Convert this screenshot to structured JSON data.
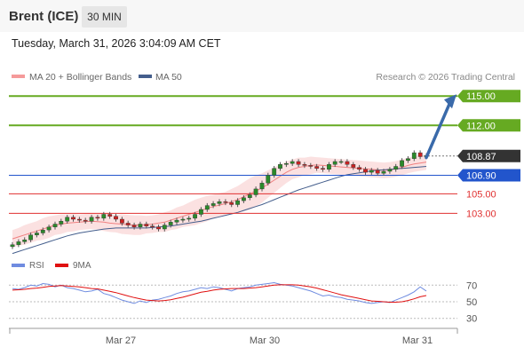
{
  "header": {
    "instrument": "Brent (ICE)",
    "timeframe": "30 MIN",
    "timestamp": "Tuesday, March 31, 2026 3:04:09 AM CET"
  },
  "legend": {
    "ma20_bb": "MA 20 + Bollinger Bands",
    "ma50": "MA 50",
    "credit": "Research © 2026 Trading Central"
  },
  "rsi_legend": {
    "rsi": "RSI",
    "ma9": "9MA"
  },
  "colors": {
    "green": "#66aa22",
    "blue": "#2255cc",
    "red": "#e03030",
    "dark_label": "#333333",
    "ma20_band": "#f8c8c8",
    "ma20_line": "#f08080",
    "ma50_line": "#445e8c",
    "arrow": "#3a6aaa",
    "rsi_line": "#6f8ce0",
    "rsi_ma": "#e01010",
    "candle_up": "#2a8a2a",
    "candle_down": "#cc2222"
  },
  "chart_data": {
    "type": "candlestick",
    "price_scale": {
      "visible_min": 98.5,
      "visible_max": 116.2
    },
    "x_ticks": [
      "Mar 27",
      "Mar 30",
      "Mar 31"
    ],
    "levels": [
      {
        "value": 115.0,
        "label": "115.00",
        "kind": "resistance"
      },
      {
        "value": 112.0,
        "label": "112.00",
        "kind": "resistance"
      },
      {
        "value": 108.87,
        "label": "108.87",
        "kind": "last"
      },
      {
        "value": 106.9,
        "label": "106.90",
        "kind": "pivot"
      },
      {
        "value": 105.0,
        "label": "105.00",
        "kind": "support"
      },
      {
        "value": 103.0,
        "label": "103.00",
        "kind": "support"
      }
    ],
    "arrow": {
      "from": 108.7,
      "to": 115.0
    },
    "close_series": [
      99.8,
      100.1,
      100.3,
      100.8,
      101.0,
      101.3,
      101.6,
      101.9,
      102.2,
      102.6,
      102.4,
      102.3,
      102.2,
      102.6,
      102.5,
      102.9,
      102.7,
      102.4,
      102.0,
      101.8,
      101.6,
      101.9,
      101.7,
      101.6,
      101.4,
      101.8,
      102.1,
      102.3,
      102.4,
      102.5,
      102.9,
      103.4,
      103.8,
      104.0,
      104.2,
      104.1,
      103.9,
      104.3,
      104.6,
      104.9,
      105.5,
      106.1,
      106.9,
      107.6,
      108.0,
      108.1,
      108.3,
      108.0,
      107.9,
      107.8,
      107.6,
      107.5,
      108.0,
      108.3,
      108.3,
      108.0,
      107.7,
      107.5,
      107.2,
      107.4,
      107.1,
      107.3,
      107.5,
      107.8,
      108.4,
      108.6,
      109.2,
      108.8,
      108.9
    ],
    "ma20_series": [
      100.4,
      100.6,
      100.8,
      101.0,
      101.2,
      101.4,
      101.6,
      101.8,
      101.9,
      102.0,
      102.05,
      102.1,
      102.15,
      102.2,
      102.15,
      102.1,
      102.0,
      101.95,
      101.9,
      101.85,
      101.8,
      101.8,
      101.85,
      101.9,
      102.0,
      102.1,
      102.3,
      102.5,
      102.7,
      102.9,
      103.1,
      103.3,
      103.5,
      103.7,
      103.85,
      104.0,
      104.2,
      104.4,
      104.7,
      105.0,
      105.3,
      105.6,
      106.0,
      106.4,
      106.8,
      107.2,
      107.5,
      107.7,
      107.8,
      107.9,
      107.95,
      107.9,
      107.85,
      107.8,
      107.75,
      107.7,
      107.65,
      107.6,
      107.55,
      107.5,
      107.45,
      107.4,
      107.45,
      107.55,
      107.7,
      107.9,
      108.05,
      108.15,
      108.25
    ],
    "bb_half_width": [
      0.9,
      0.9,
      1.0,
      1.0,
      1.0,
      1.1,
      1.1,
      1.0,
      1.0,
      0.9,
      0.9,
      0.8,
      0.8,
      0.8,
      0.8,
      0.9,
      0.9,
      0.9,
      1.0,
      1.0,
      1.0,
      1.0,
      0.9,
      0.9,
      0.9,
      1.0,
      1.0,
      1.1,
      1.1,
      1.2,
      1.3,
      1.3,
      1.3,
      1.2,
      1.2,
      1.2,
      1.3,
      1.4,
      1.5,
      1.6,
      1.6,
      1.5,
      1.4,
      1.3,
      1.2,
      1.1,
      1.0,
      1.0,
      0.9,
      0.9,
      0.8,
      0.8,
      0.8,
      0.8,
      0.8,
      0.8,
      0.8,
      0.8,
      0.8,
      0.8,
      0.8,
      0.8,
      0.8,
      0.8,
      0.8,
      0.8,
      0.8,
      0.8,
      0.8
    ],
    "ma50_series": [
      98.9,
      99.1,
      99.3,
      99.5,
      99.7,
      99.9,
      100.1,
      100.3,
      100.5,
      100.7,
      100.85,
      101.0,
      101.1,
      101.2,
      101.3,
      101.4,
      101.45,
      101.5,
      101.5,
      101.5,
      101.5,
      101.5,
      101.5,
      101.55,
      101.6,
      101.65,
      101.7,
      101.8,
      101.9,
      102.0,
      102.1,
      102.2,
      102.35,
      102.5,
      102.65,
      102.8,
      102.95,
      103.1,
      103.3,
      103.5,
      103.7,
      103.9,
      104.15,
      104.4,
      104.65,
      104.9,
      105.15,
      105.4,
      105.6,
      105.8,
      106.0,
      106.2,
      106.4,
      106.6,
      106.8,
      106.95,
      107.05,
      107.15,
      107.25,
      107.35,
      107.4,
      107.45,
      107.5,
      107.55,
      107.6,
      107.65,
      107.7,
      107.75,
      107.8
    ],
    "rsi": {
      "levels": [
        70,
        50,
        30
      ],
      "series": [
        66,
        65,
        67,
        70,
        69,
        72,
        71,
        68,
        70,
        67,
        66,
        64,
        62,
        63,
        65,
        60,
        58,
        55,
        52,
        50,
        48,
        51,
        49,
        52,
        53,
        55,
        57,
        60,
        62,
        63,
        65,
        67,
        66,
        68,
        67,
        65,
        63,
        66,
        67,
        68,
        70,
        71,
        72,
        73,
        71,
        70,
        69,
        67,
        65,
        63,
        60,
        57,
        58,
        56,
        55,
        53,
        52,
        51,
        49,
        48,
        49,
        50,
        49,
        52,
        55,
        58,
        62,
        68,
        63
      ],
      "ma9_series": [
        64,
        64.5,
        65,
        66,
        66.5,
        67.5,
        68.5,
        69,
        69.5,
        69,
        68.5,
        68,
        67,
        66,
        65.5,
        64,
        62.5,
        61,
        59,
        57,
        55,
        53.5,
        52,
        51.5,
        51,
        51.5,
        52.5,
        54,
        55.5,
        57.5,
        59.5,
        61.5,
        62.5,
        64,
        65,
        65.5,
        66,
        66,
        66,
        66.5,
        67,
        68,
        69,
        70,
        70.5,
        70.5,
        70.5,
        70,
        69,
        68,
        66.5,
        64.5,
        62.5,
        60.5,
        58.5,
        57,
        55.5,
        54,
        52.5,
        51,
        50.5,
        50,
        49.5,
        49.5,
        50,
        51.5,
        53.5,
        56,
        57.5
      ]
    }
  }
}
